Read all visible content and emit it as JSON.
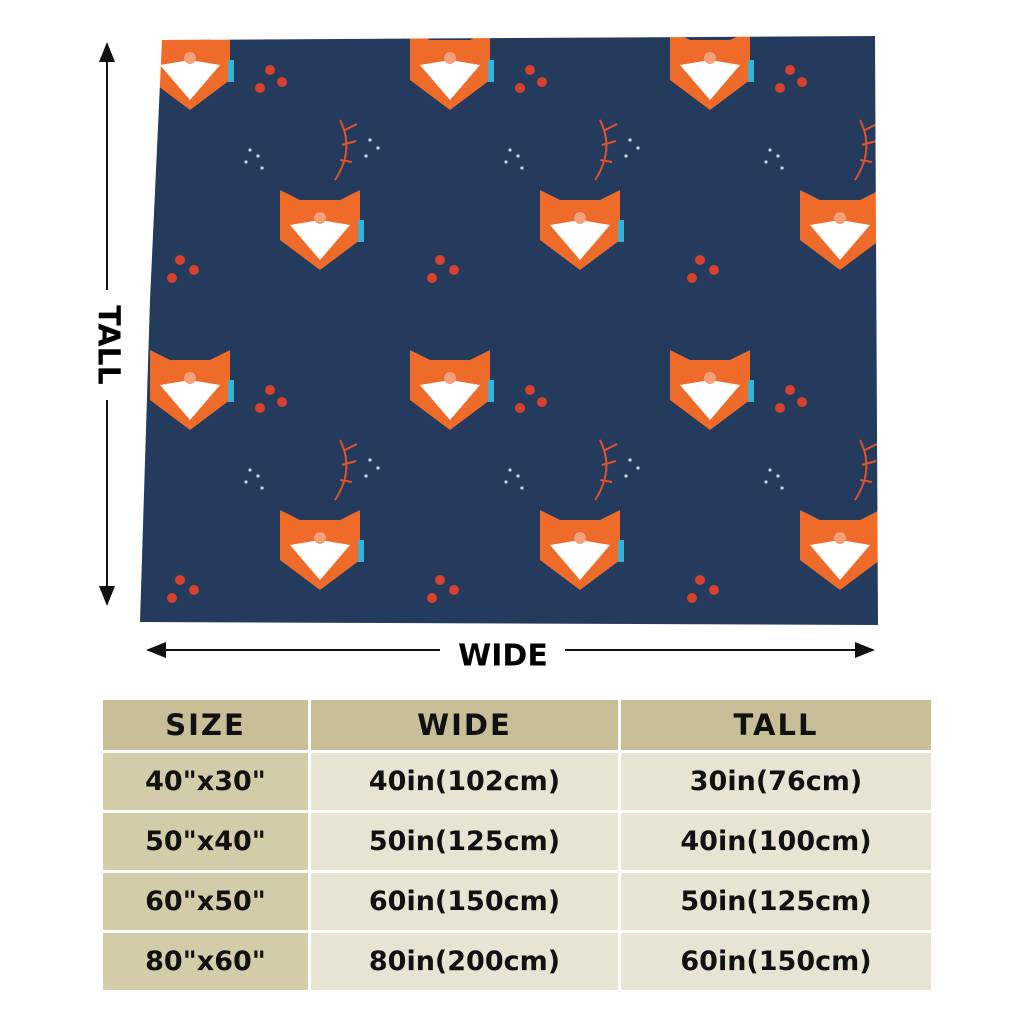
{
  "dimension_labels": {
    "tall": "TALL",
    "wide": "WIDE"
  },
  "table": {
    "header": [
      "SIZE",
      "WIDE",
      "TALL"
    ],
    "rows": [
      [
        "40\"x30\"",
        "40in(102cm)",
        "30in(76cm)"
      ],
      [
        "50\"x40\"",
        "50in(125cm)",
        "40in(100cm)"
      ],
      [
        "60\"x50\"",
        "60in(150cm)",
        "50in(125cm)"
      ],
      [
        "80\"x60\"",
        "80in(200cm)",
        "60in(150cm)"
      ]
    ]
  }
}
